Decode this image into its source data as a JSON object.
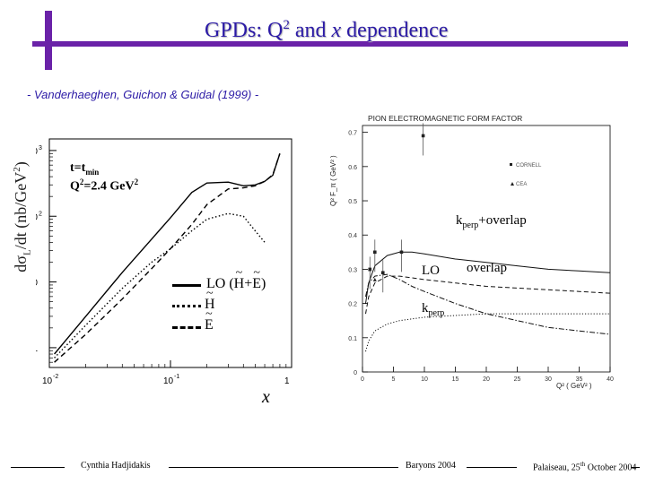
{
  "slide": {
    "title_prefix": "GPDs: Q",
    "title_sup": "2",
    "title_mid": " and ",
    "title_x": "x",
    "title_suffix": " dependence"
  },
  "citation": "- Vanderhaeghen, Guichon & Guidal (1999) -",
  "left_plot": {
    "ylabel_d": "dσ",
    "ylabel_sub": "L",
    "ylabel_mid": "/dt (nb/GeV",
    "ylabel_sup": "2",
    "ylabel_end": ")",
    "y_ticks": [
      "10",
      "10",
      "10",
      "1"
    ],
    "y_tick_exps": [
      "3",
      "2",
      "",
      ""
    ],
    "x_ticks": [
      "10",
      "10",
      "1"
    ],
    "x_tick_exps": [
      "-2",
      "-1",
      ""
    ],
    "cond_t": "t=t",
    "cond_t_sub": "min",
    "cond_q": "Q",
    "cond_q_sup": "2",
    "cond_q_val": "=2.4 GeV",
    "cond_q_sup2": "2",
    "legend": [
      {
        "text_a": "LO (",
        "text_b": "H",
        "text_c": "+",
        "text_d": "E",
        "text_e": ")"
      },
      {
        "text_a": "H"
      },
      {
        "text_a": "E"
      }
    ],
    "xvar": "x"
  },
  "right_plot": {
    "title": "PION ELECTROMAGNETIC FORM FACTOR",
    "ylabel": "Q² F_π ( GeV² )",
    "y_ticks": [
      "0.7",
      "0.6",
      "0.5",
      "0.4",
      "0.3",
      "0.2",
      "0.1",
      "0"
    ],
    "x_ticks": [
      "0",
      "5",
      "10",
      "15",
      "20",
      "25",
      "30",
      "35",
      "40"
    ],
    "xlabel": "Q² ( GeV² )",
    "legend": [
      "CORNELL",
      "CEA"
    ],
    "label_kperp_overlap": "k",
    "label_kperp_overlap_sub": "perp",
    "label_kperp_overlap_tail": "+overlap",
    "label_lo": "LO",
    "label_overlap": "overlap",
    "label_kperp": "k",
    "label_kperp_sub": "perp"
  },
  "footer": {
    "author": "Cynthia Hadjidakis",
    "conference": "Baryons 2004",
    "place_prefix": "Palaiseau, 25",
    "place_sup": "th",
    "place_suffix": " October 2004"
  },
  "chart_data": [
    {
      "type": "line",
      "title": "",
      "xlabel": "x",
      "ylabel": "dσL/dt (nb/GeV2)",
      "xscale": "log",
      "yscale": "log",
      "xlim": [
        0.01,
        1
      ],
      "ylim": [
        0.5,
        1500
      ],
      "series": [
        {
          "name": "LO (H+E)",
          "style": "solid",
          "x": [
            0.011,
            0.02,
            0.04,
            0.07,
            0.1,
            0.15,
            0.2,
            0.3,
            0.4,
            0.5,
            0.6,
            0.7,
            0.8
          ],
          "y": [
            0.8,
            3.0,
            14,
            45,
            95,
            230,
            320,
            330,
            290,
            300,
            340,
            420,
            900
          ]
        },
        {
          "name": "H",
          "style": "dotted",
          "x": [
            0.011,
            0.02,
            0.04,
            0.07,
            0.1,
            0.15,
            0.2,
            0.3,
            0.4,
            0.5,
            0.6
          ],
          "y": [
            0.7,
            2.2,
            8,
            20,
            32,
            60,
            90,
            110,
            100,
            60,
            40
          ]
        },
        {
          "name": "E",
          "style": "dashed",
          "x": [
            0.011,
            0.02,
            0.04,
            0.07,
            0.1,
            0.15,
            0.2,
            0.3,
            0.4,
            0.5,
            0.6,
            0.7,
            0.8
          ],
          "y": [
            0.6,
            1.6,
            5.5,
            16,
            32,
            75,
            150,
            260,
            270,
            290,
            340,
            430,
            900
          ]
        }
      ]
    },
    {
      "type": "line",
      "title": "PION ELECTROMAGNETIC FORM FACTOR",
      "xlabel": "Q² ( GeV² )",
      "ylabel": "Q² F_π ( GeV² )",
      "xlim": [
        0,
        40
      ],
      "ylim": [
        0,
        0.72
      ],
      "series": [
        {
          "name": "kperp+overlap",
          "style": "solid",
          "x": [
            0.5,
            1,
            2,
            4,
            6,
            8,
            10,
            15,
            20,
            25,
            30,
            35,
            40
          ],
          "y": [
            0.2,
            0.26,
            0.31,
            0.34,
            0.35,
            0.35,
            0.345,
            0.33,
            0.32,
            0.31,
            0.3,
            0.295,
            0.29
          ]
        },
        {
          "name": "LO",
          "style": "dashed",
          "x": [
            0.5,
            1,
            2,
            4,
            6,
            8,
            10,
            15,
            20,
            25,
            30,
            35,
            40
          ],
          "y": [
            0.17,
            0.22,
            0.26,
            0.28,
            0.28,
            0.275,
            0.27,
            0.26,
            0.25,
            0.245,
            0.24,
            0.235,
            0.23
          ]
        },
        {
          "name": "overlap",
          "style": "dashdot",
          "x": [
            0.5,
            1,
            2,
            4,
            6,
            8,
            10,
            15,
            20,
            25,
            30,
            35,
            40
          ],
          "y": [
            0.22,
            0.26,
            0.28,
            0.285,
            0.27,
            0.25,
            0.235,
            0.2,
            0.17,
            0.15,
            0.13,
            0.12,
            0.11
          ]
        },
        {
          "name": "kperp",
          "style": "dotted",
          "x": [
            0.5,
            1,
            2,
            4,
            6,
            8,
            10,
            15,
            20,
            25,
            30,
            35,
            40
          ],
          "y": [
            0.06,
            0.09,
            0.12,
            0.14,
            0.15,
            0.155,
            0.16,
            0.165,
            0.17,
            0.17,
            0.17,
            0.17,
            0.17
          ]
        },
        {
          "name": "CORNELL",
          "style": "points",
          "x": [
            1.2,
            2.0,
            3.3,
            6.3,
            9.8
          ],
          "y": [
            0.3,
            0.35,
            0.29,
            0.35,
            0.69
          ]
        },
        {
          "name": "CEA",
          "style": "points",
          "x": [
            1.2,
            2.0
          ],
          "y": [
            0.3,
            0.27
          ]
        }
      ]
    }
  ]
}
